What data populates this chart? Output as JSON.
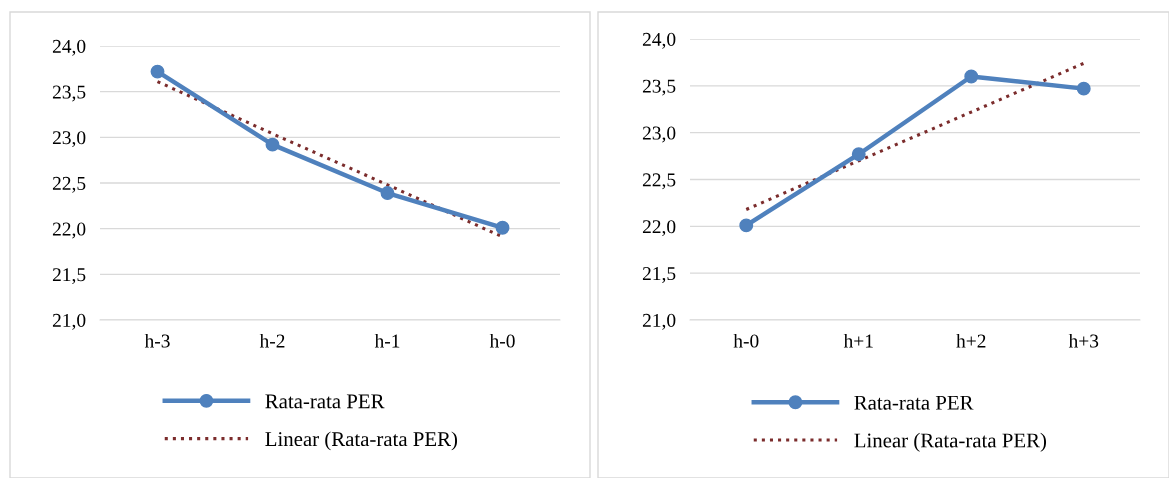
{
  "chart_data": [
    {
      "type": "line",
      "categories": [
        "h-3",
        "h-2",
        "h-1",
        "h-0"
      ],
      "ylim": [
        21,
        24
      ],
      "yticks": [
        {
          "value": 21,
          "label": "21,0"
        },
        {
          "value": 21.5,
          "label": "21,5"
        },
        {
          "value": 22,
          "label": "22,0"
        },
        {
          "value": 22.5,
          "label": "22,5"
        },
        {
          "value": 23,
          "label": "23,0"
        },
        {
          "value": 23.5,
          "label": "23,5"
        },
        {
          "value": 24,
          "label": "24,0"
        }
      ],
      "grid": "y",
      "legend": "bottom",
      "series": [
        {
          "name": "Rata-rata PER",
          "type": "line",
          "color": "#4f81bd",
          "marker": "circle",
          "line_style": "solid",
          "values": [
            23.72,
            22.92,
            22.39,
            22.01
          ]
        },
        {
          "name": "Linear (Rata-rata PER)",
          "type": "line",
          "color": "#7b2c2c",
          "marker": "none",
          "line_style": "dotted",
          "values": [
            23.61,
            23.04,
            22.48,
            21.91
          ]
        }
      ]
    },
    {
      "type": "line",
      "categories": [
        "h-0",
        "h+1",
        "h+2",
        "h+3"
      ],
      "ylim": [
        21,
        24
      ],
      "yticks": [
        {
          "value": 21,
          "label": "21,0"
        },
        {
          "value": 21.5,
          "label": "21,5"
        },
        {
          "value": 22,
          "label": "22,0"
        },
        {
          "value": 22.5,
          "label": "22,5"
        },
        {
          "value": 23,
          "label": "23,0"
        },
        {
          "value": 23.5,
          "label": "23,5"
        },
        {
          "value": 24,
          "label": "24,0"
        }
      ],
      "grid": "y",
      "legend": "bottom",
      "series": [
        {
          "name": "Rata-rata PER",
          "type": "line",
          "color": "#4f81bd",
          "marker": "circle",
          "line_style": "solid",
          "values": [
            22.01,
            22.77,
            23.6,
            23.47
          ]
        },
        {
          "name": "Linear (Rata-rata PER)",
          "type": "line",
          "color": "#7b2c2c",
          "marker": "none",
          "line_style": "dotted",
          "values": [
            22.18,
            22.7,
            23.22,
            23.74
          ]
        }
      ]
    }
  ]
}
